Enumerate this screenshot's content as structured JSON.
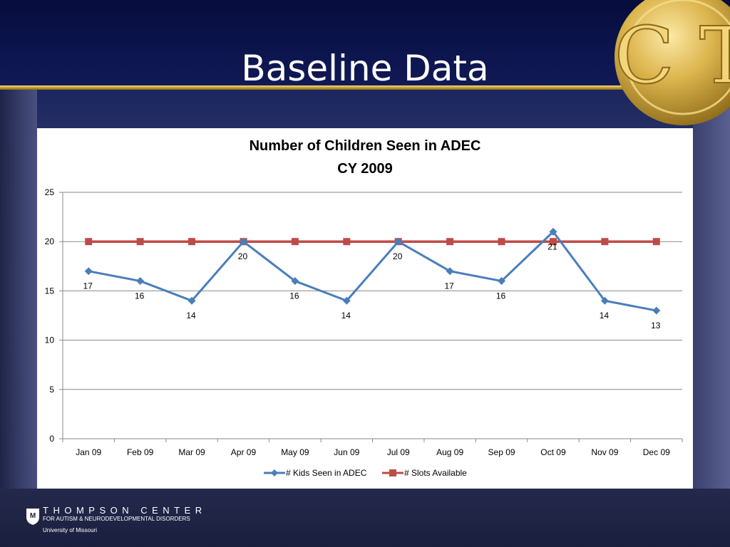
{
  "slide": {
    "title": "Baseline Data",
    "logo_text": "C T",
    "footer": {
      "org_name": "THOMPSON CENTER",
      "org_subtitle": "FOR AUTISM & NEURODEVELOPMENTAL DISORDERS",
      "university": "University of Missouri"
    }
  },
  "colors": {
    "series_kids": "#4a7ebb",
    "series_slots": "#be4b48",
    "background_band": "#0d1650",
    "gold": "#c9a53a"
  },
  "chart_data": {
    "type": "line",
    "title": "Number of Children Seen in ADEC",
    "subtitle": "CY 2009",
    "categories": [
      "Jan 09",
      "Feb 09",
      "Mar 09",
      "Apr 09",
      "May 09",
      "Jun 09",
      "Jul 09",
      "Aug 09",
      "Sep 09",
      "Oct 09",
      "Nov 09",
      "Dec 09"
    ],
    "series": [
      {
        "name": "# Kids Seen in ADEC",
        "marker": "diamond",
        "values": [
          17,
          16,
          14,
          20,
          16,
          14,
          20,
          17,
          16,
          21,
          14,
          13
        ],
        "data_labels": true
      },
      {
        "name": "# Slots Available",
        "marker": "square",
        "values": [
          20,
          20,
          20,
          20,
          20,
          20,
          20,
          20,
          20,
          20,
          20,
          20
        ],
        "data_labels": false
      }
    ],
    "ylim": [
      0,
      25
    ],
    "yticks": [
      0,
      5,
      10,
      15,
      20,
      25
    ],
    "grid": "horizontal",
    "legend": "bottom"
  }
}
